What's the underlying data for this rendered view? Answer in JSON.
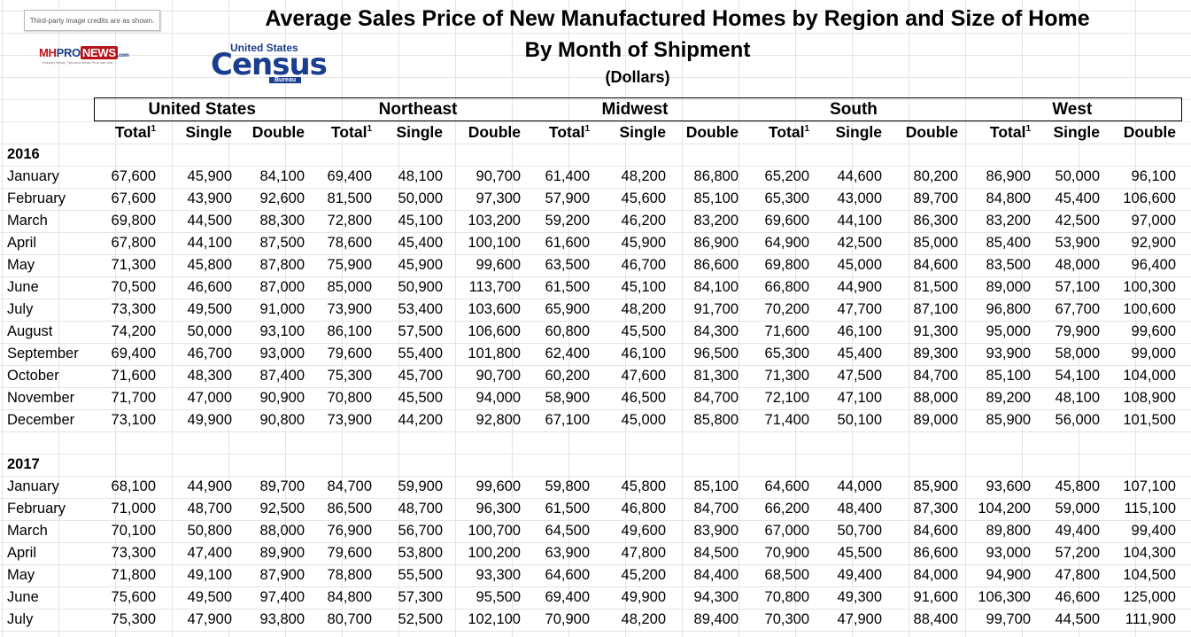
{
  "credit": "Third-party image credits are as shown.",
  "logos": {
    "mhpro": {
      "mh": "MH",
      "pro": "PRO",
      "news": "NEWS",
      ".com": ".com",
      "tagline": "Industry News, Tips and Views Pros can Use."
    },
    "census": {
      "top": "United States",
      "word": "Census",
      "bureau": "Bureau"
    }
  },
  "title": "Average Sales Price of New Manufactured Homes by Region and Size of Home",
  "subtitle": "By Month of Shipment",
  "units": "(Dollars)",
  "regions": [
    "United States",
    "Northeast",
    "Midwest",
    "South",
    "West"
  ],
  "column_heads": [
    "Total",
    "Single",
    "Double"
  ],
  "footnote_marker": "1",
  "years": [
    {
      "year": "2016",
      "rows": [
        {
          "month": "January",
          "values": [
            "67,600",
            "45,900",
            "84,100",
            "69,400",
            "48,100",
            "90,700",
            "61,400",
            "48,200",
            "86,800",
            "65,200",
            "44,600",
            "80,200",
            "86,900",
            "50,000",
            "96,100"
          ]
        },
        {
          "month": "February",
          "values": [
            "67,600",
            "43,900",
            "92,600",
            "81,500",
            "50,000",
            "97,300",
            "57,900",
            "45,600",
            "85,100",
            "65,300",
            "43,000",
            "89,700",
            "84,800",
            "45,400",
            "106,600"
          ]
        },
        {
          "month": "March",
          "values": [
            "69,800",
            "44,500",
            "88,300",
            "72,800",
            "45,100",
            "103,200",
            "59,200",
            "46,200",
            "83,200",
            "69,600",
            "44,100",
            "86,300",
            "83,200",
            "42,500",
            "97,000"
          ]
        },
        {
          "month": "April",
          "values": [
            "67,800",
            "44,100",
            "87,500",
            "78,600",
            "45,400",
            "100,100",
            "61,600",
            "45,900",
            "86,900",
            "64,900",
            "42,500",
            "85,000",
            "85,400",
            "53,900",
            "92,900"
          ]
        },
        {
          "month": "May",
          "values": [
            "71,300",
            "45,800",
            "87,800",
            "75,900",
            "45,900",
            "99,600",
            "63,500",
            "46,700",
            "86,600",
            "69,800",
            "45,000",
            "84,600",
            "83,500",
            "48,000",
            "96,400"
          ]
        },
        {
          "month": "June",
          "values": [
            "70,500",
            "46,600",
            "87,000",
            "85,000",
            "50,900",
            "113,700",
            "61,500",
            "45,100",
            "84,100",
            "66,800",
            "44,900",
            "81,500",
            "89,000",
            "57,100",
            "100,300"
          ]
        },
        {
          "month": "July",
          "values": [
            "73,300",
            "49,500",
            "91,000",
            "73,900",
            "53,400",
            "103,600",
            "65,900",
            "48,200",
            "91,700",
            "70,200",
            "47,700",
            "87,100",
            "96,800",
            "67,700",
            "100,600"
          ]
        },
        {
          "month": "August",
          "values": [
            "74,200",
            "50,000",
            "93,100",
            "86,100",
            "57,500",
            "106,600",
            "60,800",
            "45,500",
            "84,300",
            "71,600",
            "46,100",
            "91,300",
            "95,000",
            "79,900",
            "99,600"
          ]
        },
        {
          "month": "September",
          "values": [
            "69,400",
            "46,700",
            "93,000",
            "79,600",
            "55,400",
            "101,800",
            "62,400",
            "46,100",
            "96,500",
            "65,300",
            "45,400",
            "89,300",
            "93,900",
            "58,000",
            "99,000"
          ]
        },
        {
          "month": "October",
          "values": [
            "71,600",
            "48,300",
            "87,400",
            "75,300",
            "45,700",
            "90,700",
            "60,200",
            "47,600",
            "81,300",
            "71,300",
            "47,500",
            "84,700",
            "85,100",
            "54,100",
            "104,000"
          ]
        },
        {
          "month": "November",
          "values": [
            "71,700",
            "47,000",
            "90,900",
            "70,800",
            "45,500",
            "94,000",
            "58,900",
            "46,500",
            "84,700",
            "72,100",
            "47,100",
            "88,000",
            "89,200",
            "48,100",
            "108,900"
          ]
        },
        {
          "month": "December",
          "values": [
            "73,100",
            "49,900",
            "90,800",
            "73,900",
            "44,200",
            "92,800",
            "67,100",
            "45,000",
            "85,800",
            "71,400",
            "50,100",
            "89,000",
            "85,900",
            "56,000",
            "101,500"
          ]
        }
      ]
    },
    {
      "year": "2017",
      "rows": [
        {
          "month": "January",
          "values": [
            "68,100",
            "44,900",
            "89,700",
            "84,700",
            "59,900",
            "99,600",
            "59,800",
            "45,800",
            "85,100",
            "64,600",
            "44,000",
            "85,900",
            "93,600",
            "45,800",
            "107,100"
          ]
        },
        {
          "month": "February",
          "values": [
            "71,000",
            "48,700",
            "92,500",
            "86,500",
            "48,700",
            "96,300",
            "61,500",
            "46,800",
            "84,700",
            "66,200",
            "48,400",
            "87,300",
            "104,200",
            "59,000",
            "115,100"
          ]
        },
        {
          "month": "March",
          "values": [
            "70,100",
            "50,800",
            "88,000",
            "76,900",
            "56,700",
            "100,700",
            "64,500",
            "49,600",
            "83,900",
            "67,000",
            "50,700",
            "84,600",
            "89,800",
            "49,400",
            "99,400"
          ]
        },
        {
          "month": "April",
          "values": [
            "73,300",
            "47,400",
            "89,900",
            "79,600",
            "53,800",
            "100,200",
            "63,900",
            "47,800",
            "84,500",
            "70,900",
            "45,500",
            "86,600",
            "93,000",
            "57,200",
            "104,300"
          ]
        },
        {
          "month": "May",
          "values": [
            "71,800",
            "49,100",
            "87,900",
            "78,800",
            "55,500",
            "93,300",
            "64,600",
            "45,200",
            "84,400",
            "68,500",
            "49,400",
            "84,000",
            "94,900",
            "47,800",
            "104,500"
          ]
        },
        {
          "month": "June",
          "values": [
            "75,600",
            "49,500",
            "97,400",
            "84,800",
            "57,300",
            "95,500",
            "69,400",
            "49,900",
            "94,300",
            "70,800",
            "49,300",
            "91,600",
            "106,300",
            "46,600",
            "125,000"
          ]
        },
        {
          "month": "July",
          "values": [
            "75,300",
            "47,900",
            "93,800",
            "80,700",
            "52,500",
            "102,100",
            "70,900",
            "48,200",
            "89,400",
            "70,300",
            "47,900",
            "88,400",
            "99,700",
            "44,500",
            "111,900"
          ]
        }
      ]
    }
  ]
}
